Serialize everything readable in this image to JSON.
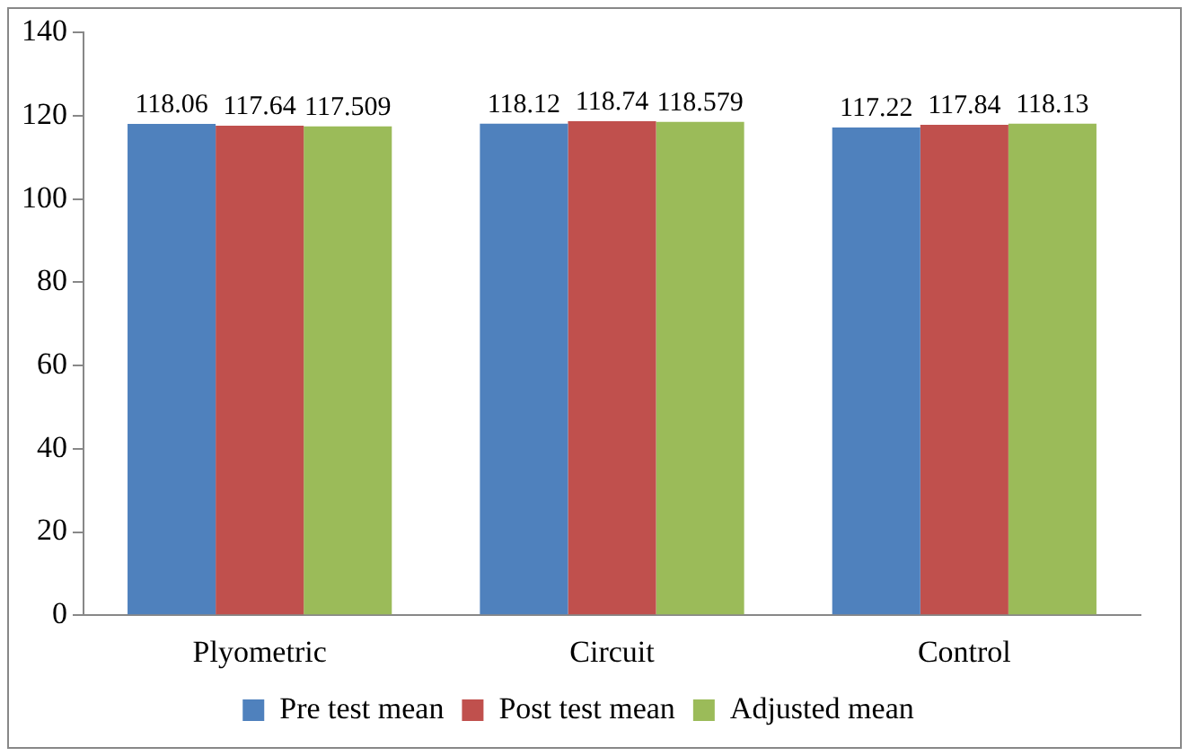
{
  "chart_data": {
    "type": "bar",
    "categories": [
      "Plyometric",
      "Circuit",
      "Control"
    ],
    "series": [
      {
        "name": "Pre test mean",
        "color": "#4f81bd",
        "values": [
          118.06,
          118.12,
          117.22
        ]
      },
      {
        "name": "Post test mean",
        "color": "#c0504d",
        "values": [
          117.64,
          118.74,
          117.84
        ]
      },
      {
        "name": "Adjusted mean",
        "color": "#9bbb59",
        "values": [
          117.509,
          118.579,
          118.13
        ]
      }
    ],
    "ylim": [
      0,
      140
    ],
    "yticks": [
      0,
      20,
      40,
      60,
      80,
      100,
      120,
      140
    ],
    "grid": false,
    "legend": "bottom",
    "data_labels": true
  }
}
